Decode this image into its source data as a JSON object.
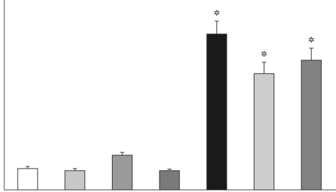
{
  "chart_data": {
    "type": "bar",
    "values": [
      11.3,
      10.2,
      18.4,
      10.2,
      82.7,
      61.7,
      68.8
    ],
    "errors": [
      1.1,
      1.1,
      1.5,
      0.8,
      6.8,
      6.0,
      6.4
    ],
    "colors": [
      "#ffffff",
      "#c8c8c8",
      "#9a9a9a",
      "#7a7a7a",
      "#1a1a1a",
      "#cdcdcd",
      "#828282"
    ],
    "annotations": [
      null,
      null,
      null,
      null,
      "✲",
      "✲",
      "✲"
    ],
    "ylim": [
      0,
      100
    ]
  }
}
